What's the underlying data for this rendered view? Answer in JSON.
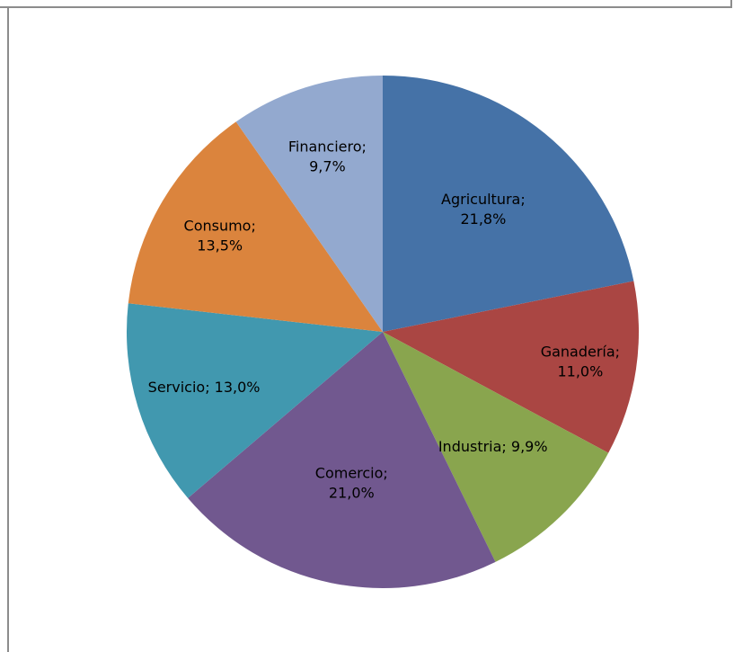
{
  "chart_data": {
    "type": "pie",
    "title": "",
    "start_angle_deg": 0,
    "direction": "clockwise",
    "legend": "none",
    "slices": [
      {
        "name": "Agricultura",
        "value": 21.8,
        "label_line1": "Agricultura;",
        "label_line2": "21,8%",
        "color": "#4572a7"
      },
      {
        "name": "Ganadería",
        "value": 11.0,
        "label_line1": "Ganadería;",
        "label_line2": "11,0%",
        "color": "#aa4643"
      },
      {
        "name": "Industria",
        "value": 9.9,
        "label_line1": "Industria; 9,9%",
        "label_line2": "",
        "color": "#89a54e"
      },
      {
        "name": "Comercio",
        "value": 21.0,
        "label_line1": "Comercio;",
        "label_line2": "21,0%",
        "color": "#71588f"
      },
      {
        "name": "Servicio",
        "value": 13.0,
        "label_line1": "Servicio; 13,0%",
        "label_line2": "",
        "color": "#4198af"
      },
      {
        "name": "Consumo",
        "value": 13.5,
        "label_line1": "Consumo;",
        "label_line2": "13,5%",
        "color": "#db843d"
      },
      {
        "name": "Financiero",
        "value": 9.7,
        "label_line1": "Financiero;",
        "label_line2": "9,7%",
        "color": "#93a9cf"
      }
    ]
  }
}
